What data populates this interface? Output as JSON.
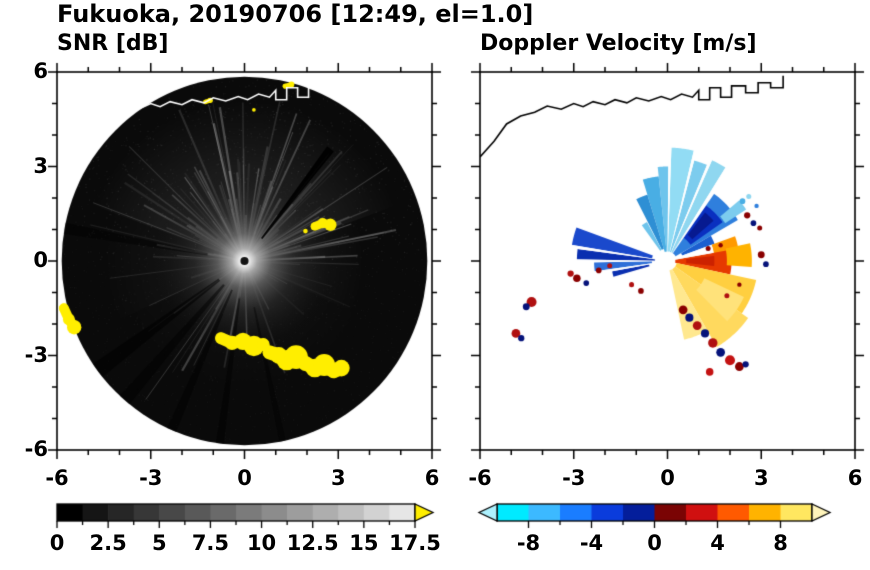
{
  "title": "Fukuoka, 20190706 [12:49, el=1.0]",
  "panels": {
    "snr": {
      "title": "SNR [dB]",
      "x_tick_labels": [
        "-6",
        "-3",
        "0",
        "3",
        "6"
      ],
      "y_tick_labels": [
        "6",
        "3",
        "0",
        "-3",
        "-6"
      ],
      "colorbar_tick_labels": [
        "0",
        "2.5",
        "5",
        "7.5",
        "10",
        "12.5",
        "15",
        "17.5"
      ]
    },
    "velocity": {
      "title": "Doppler Velocity [m/s]",
      "x_tick_labels": [
        "-6",
        "-3",
        "0",
        "3",
        "6"
      ],
      "colorbar_tick_labels": [
        "-8",
        "-4",
        "0",
        "4",
        "8"
      ]
    }
  },
  "coastline": [
    [
      -6.0,
      3.3
    ],
    [
      -5.55,
      3.8
    ],
    [
      -5.15,
      4.35
    ],
    [
      -4.7,
      4.6
    ],
    [
      -4.25,
      4.72
    ],
    [
      -3.85,
      4.92
    ],
    [
      -3.4,
      4.82
    ],
    [
      -3.0,
      5.0
    ],
    [
      -2.7,
      4.9
    ],
    [
      -2.38,
      5.06
    ],
    [
      -2.0,
      4.96
    ],
    [
      -1.68,
      5.12
    ],
    [
      -1.3,
      5.02
    ],
    [
      -1.0,
      5.18
    ],
    [
      -0.6,
      5.08
    ],
    [
      -0.2,
      5.22
    ],
    [
      0.1,
      5.12
    ],
    [
      0.45,
      5.3
    ],
    [
      0.8,
      5.2
    ],
    [
      1.0,
      5.42
    ],
    [
      1.0,
      5.12
    ],
    [
      1.35,
      5.12
    ],
    [
      1.35,
      5.5
    ],
    [
      1.7,
      5.5
    ],
    [
      1.7,
      5.2
    ],
    [
      2.05,
      5.2
    ],
    [
      2.05,
      5.56
    ],
    [
      2.5,
      5.56
    ],
    [
      2.5,
      5.34
    ],
    [
      2.9,
      5.34
    ],
    [
      2.9,
      5.66
    ],
    [
      3.3,
      5.66
    ],
    [
      3.3,
      5.5
    ],
    [
      3.7,
      5.5
    ],
    [
      3.7,
      5.88
    ]
  ],
  "chart_data": [
    {
      "type": "heatmap",
      "title": "SNR [dB]",
      "suptitle": "Fukuoka, 20190706 [12:49, el=1.0]",
      "xlim": [
        -6,
        6
      ],
      "ylim": [
        -6,
        6
      ],
      "x_ticks": [
        -6,
        -3,
        0,
        3,
        6
      ],
      "y_ticks": [
        6,
        3,
        0,
        -3,
        -6
      ],
      "colorbar": {
        "range": [
          0,
          17.5
        ],
        "ticks": [
          0,
          2.5,
          5,
          7.5,
          10,
          12.5,
          15,
          17.5
        ],
        "colors": [
          "#000000",
          "#151515",
          "#262626",
          "#373737",
          "#484848",
          "#595959",
          "#6a6a6a",
          "#7b7b7b",
          "#8c8c8c",
          "#9d9d9d",
          "#aeaeae",
          "#bfbfbf",
          "#d2d2d2",
          "#e6e6e6"
        ],
        "over_color": "#ffee00"
      },
      "coastline_color": "#ffffff",
      "render": {
        "disc": {
          "r": 5.85,
          "fill": "#0a0a0a"
        },
        "hazes": [
          {
            "a0": 20,
            "a1": 160,
            "r1": 5.2,
            "rgb": "205,205,205",
            "alpha": 0.15
          },
          {
            "a0": -25,
            "a1": 20,
            "r1": 3.9,
            "rgb": "190,190,190",
            "alpha": 0.1
          },
          {
            "a0": 160,
            "a1": 205,
            "r1": 4.6,
            "rgb": "185,185,185",
            "alpha": 0.08
          },
          {
            "a0": 205,
            "a1": 335,
            "r1": 4.2,
            "rgb": "160,160,160",
            "alpha": 0.05
          }
        ],
        "rays": {
          "seed": 11,
          "count": 170,
          "r0": 0.25,
          "lenMin": 0.6,
          "lenMax": 5.2,
          "rgb": "228,228,228",
          "alphaMin": 0.05,
          "alphaMax": 0.3,
          "upFrac": 0.62,
          "upA0": 10,
          "upA1": 170
        },
        "speckle": {
          "seed": 29,
          "count": 2600,
          "rgb": "210,210,210",
          "alphaMax": 0.13
        },
        "glow": {
          "r": 2.9,
          "stops": [
            [
              0,
              "255,255,255",
              1
            ],
            [
              0.05,
              "240,240,240",
              1
            ],
            [
              0.14,
              "170,170,170",
              0.95
            ],
            [
              0.3,
              "100,100,100",
              0.85
            ],
            [
              0.55,
              "55,55,55",
              0.5
            ],
            [
              1,
              "20,20,20",
              0
            ]
          ]
        },
        "darkWedges": [
          {
            "a0": 50.5,
            "a1": 54,
            "r0": 0.9,
            "r1": 4.5,
            "alpha": 0.92
          },
          {
            "a0": 214,
            "a1": 219,
            "r0": 1.0,
            "r1": 5.85,
            "alpha": 0.55
          },
          {
            "a0": 227,
            "a1": 231,
            "r0": 1.0,
            "r1": 5.85,
            "alpha": 0.5
          },
          {
            "a0": 245,
            "a1": 248,
            "r0": 1.0,
            "r1": 5.85,
            "alpha": 0.5
          },
          {
            "a0": 261,
            "a1": 263.5,
            "r0": 1.2,
            "r1": 5.85,
            "alpha": 0.45
          },
          {
            "a0": 281,
            "a1": 283,
            "r0": 1.5,
            "r1": 5.85,
            "alpha": 0.4
          },
          {
            "a0": 168,
            "a1": 171.5,
            "r0": 1.2,
            "r1": 5.85,
            "alpha": 0.45
          }
        ],
        "yellow": {
          "color": "#ffee00",
          "chains": [
            {
              "w": 0.2,
              "pts": [
                [
                  -5.78,
                  -1.5
                ],
                [
                  -5.62,
                  -1.85
                ],
                [
                  -5.45,
                  -2.1
                ]
              ]
            },
            {
              "w": 0.24,
              "pts": [
                [
                  -0.75,
                  -2.45
                ],
                [
                  -0.4,
                  -2.6
                ],
                [
                  -0.05,
                  -2.55
                ],
                [
                  0.3,
                  -2.7
                ],
                [
                  0.6,
                  -2.65
                ]
              ]
            },
            {
              "w": 0.28,
              "pts": [
                [
                  0.8,
                  -2.9
                ],
                [
                  1.1,
                  -3.0
                ],
                [
                  1.35,
                  -3.15
                ],
                [
                  1.65,
                  -3.05
                ],
                [
                  1.95,
                  -3.25
                ],
                [
                  2.25,
                  -3.4
                ],
                [
                  2.55,
                  -3.3
                ],
                [
                  2.85,
                  -3.5
                ],
                [
                  3.1,
                  -3.4
                ]
              ]
            },
            {
              "w": 0.17,
              "pts": [
                [
                  2.25,
                  1.1
                ],
                [
                  2.5,
                  1.2
                ],
                [
                  2.75,
                  1.15
                ]
              ]
            },
            {
              "w": 0.1,
              "pts": [
                [
                  1.95,
                  0.95
                ]
              ]
            },
            {
              "w": 0.09,
              "pts": [
                [
                  -1.25,
                  5.05
                ],
                [
                  -1.1,
                  5.1
                ]
              ]
            },
            {
              "w": 0.1,
              "pts": [
                [
                  1.3,
                  5.55
                ],
                [
                  1.5,
                  5.6
                ]
              ]
            },
            {
              "w": 0.08,
              "pts": [
                [
                  0.3,
                  4.8
                ]
              ]
            }
          ]
        },
        "centerDot": {
          "r": 0.13,
          "fill": "#141414"
        }
      }
    },
    {
      "type": "heatmap",
      "title": "Doppler Velocity [m/s]",
      "xlim": [
        -6,
        6
      ],
      "ylim": [
        -6,
        6
      ],
      "x_ticks": [
        -6,
        -3,
        0,
        3,
        6
      ],
      "y_ticks": [
        6,
        3,
        0,
        -3,
        -6
      ],
      "colorbar": {
        "range": [
          -10,
          10
        ],
        "ticks": [
          -8,
          -4,
          0,
          4,
          8
        ],
        "colors": [
          "#00eaff",
          "#3cb9ff",
          "#1a7dff",
          "#0a3cdc",
          "#041e9b",
          "#7a0404",
          "#d01010",
          "#ff5a00",
          "#ffb300",
          "#ffe760"
        ],
        "under_color": "#aef2ff",
        "over_color": "#fff4bb"
      },
      "coastline_color": "#000000",
      "render": {
        "wedges": [
          {
            "a0": 58,
            "a1": 66,
            "r0": 0.3,
            "r1": 3.5,
            "c": "#8fd7f0"
          },
          {
            "a0": 67.5,
            "a1": 75,
            "r0": 0.3,
            "r1": 3.3,
            "c": "#7cccee"
          },
          {
            "a0": 76.5,
            "a1": 88,
            "r0": 0.3,
            "r1": 3.6,
            "c": "#92dcf4"
          },
          {
            "a0": 89.5,
            "a1": 96,
            "r0": 0.3,
            "r1": 3.0,
            "c": "#6ec4ec"
          },
          {
            "a0": 96,
            "a1": 107,
            "r0": 0.3,
            "r1": 2.7,
            "c": "#49aee4"
          },
          {
            "a0": 107,
            "a1": 117,
            "r0": 0.4,
            "r1": 2.2,
            "c": "#2e8fd4"
          },
          {
            "a0": 118,
            "a1": 126,
            "r0": 0.4,
            "r1": 1.4,
            "c": "#6ec4ec"
          },
          {
            "a0": 30,
            "a1": 57,
            "r0": 0.3,
            "r1": 2.6,
            "c": "#2f7fdd"
          },
          {
            "a0": 35,
            "a1": 55,
            "r0": 0.9,
            "r1": 2.15,
            "c": "#0a30c0"
          },
          {
            "a0": 41,
            "a1": 52,
            "r0": 1.05,
            "r1": 1.95,
            "c": "#071a90"
          },
          {
            "a0": 33,
            "a1": 40,
            "r0": 2.2,
            "r1": 3.0,
            "c": "#7cccee"
          },
          {
            "a0": 20,
            "a1": 30,
            "r0": 0.5,
            "r1": 1.6,
            "c": "#1b5fd0"
          },
          {
            "a0": 8,
            "a1": 20,
            "r0": 1.5,
            "r1": 2.3,
            "c": "#ff9a00"
          },
          {
            "a0": -12,
            "a1": 10,
            "r0": 0.25,
            "r1": 2.05,
            "c": "#e63900"
          },
          {
            "a0": -6,
            "a1": 6,
            "r0": 0.6,
            "r1": 1.5,
            "c": "#cc2200"
          },
          {
            "a0": -4,
            "a1": 12,
            "r0": 1.9,
            "r1": 2.7,
            "c": "#ffb300"
          },
          {
            "a0": -35,
            "a1": -12,
            "r0": 0.3,
            "r1": 2.9,
            "c": "#ffcf40"
          },
          {
            "a0": -60,
            "a1": -35,
            "r0": 0.3,
            "r1": 3.15,
            "c": "#ffd95e"
          },
          {
            "a0": -45,
            "a1": -25,
            "r0": 1.3,
            "r1": 2.7,
            "c": "#ffe27a"
          },
          {
            "a0": -78,
            "a1": -60,
            "r0": 0.3,
            "r1": 2.55,
            "c": "#ffe88f"
          },
          {
            "a0": 160,
            "a1": 170.5,
            "r0": 0.5,
            "r1": 3.1,
            "c": "#1a49cc"
          },
          {
            "a0": 172.5,
            "a1": 179,
            "r0": 0.4,
            "r1": 2.9,
            "c": "#0a2fb0"
          },
          {
            "a0": 181,
            "a1": 188,
            "r0": 0.5,
            "r1": 2.35,
            "c": "#2e6fd8"
          },
          {
            "a0": 190.5,
            "a1": 196,
            "r0": 0.6,
            "r1": 1.8,
            "c": "#0a2fb0"
          }
        ],
        "gaps": [
          {
            "a0": 10,
            "a1": 20,
            "r0": 0,
            "r1": 1.5
          },
          {
            "a0": 66,
            "a1": 67.5,
            "r0": 0,
            "r1": 4
          },
          {
            "a0": 75,
            "a1": 76.5,
            "r0": 0,
            "r1": 4
          },
          {
            "a0": 88,
            "a1": 89.5,
            "r0": 0,
            "r1": 4
          },
          {
            "a0": 55,
            "a1": 58,
            "r0": 0,
            "r1": 4
          },
          {
            "a0": 170.5,
            "a1": 172.5,
            "r0": 0,
            "r1": 3.5
          },
          {
            "a0": 179,
            "a1": 181,
            "r0": 0,
            "r1": 3
          },
          {
            "a0": 188,
            "a1": 190.5,
            "r0": 0,
            "r1": 3
          }
        ],
        "dots": [
          [
            2.55,
            1.45,
            0.1,
            "#8a0000"
          ],
          [
            2.75,
            1.2,
            0.09,
            "#05127a"
          ],
          [
            2.95,
            1.05,
            0.08,
            "#8a0000"
          ],
          [
            3.0,
            0.2,
            0.11,
            "#8a0000"
          ],
          [
            3.15,
            -0.1,
            0.09,
            "#05127a"
          ],
          [
            1.3,
            0.4,
            0.08,
            "#8a0000"
          ],
          [
            1.7,
            0.5,
            0.07,
            "#8a0000"
          ],
          [
            2.4,
            1.9,
            0.09,
            "#49aee4"
          ],
          [
            2.6,
            2.05,
            0.08,
            "#8fd7f0"
          ],
          [
            2.85,
            1.75,
            0.07,
            "#2f7fdd"
          ],
          [
            -2.9,
            -0.55,
            0.12,
            "#8a0000"
          ],
          [
            -3.1,
            -0.4,
            0.1,
            "#b01010"
          ],
          [
            -2.6,
            -0.7,
            0.09,
            "#05127a"
          ],
          [
            -2.2,
            -0.3,
            0.09,
            "#8a0000"
          ],
          [
            -1.85,
            -0.15,
            0.08,
            "#b01010"
          ],
          [
            -4.35,
            -1.3,
            0.16,
            "#b01010"
          ],
          [
            -4.52,
            -1.45,
            0.11,
            "#05127a"
          ],
          [
            -4.85,
            -2.3,
            0.14,
            "#b01010"
          ],
          [
            -4.68,
            -2.45,
            0.1,
            "#05127a"
          ],
          [
            0.5,
            -1.55,
            0.14,
            "#8a0000"
          ],
          [
            0.7,
            -1.8,
            0.13,
            "#05127a"
          ],
          [
            0.95,
            -2.05,
            0.14,
            "#b01010"
          ],
          [
            1.2,
            -2.3,
            0.13,
            "#05127a"
          ],
          [
            1.45,
            -2.6,
            0.15,
            "#b01010"
          ],
          [
            1.7,
            -2.9,
            0.14,
            "#05127a"
          ],
          [
            2.0,
            -3.15,
            0.16,
            "#c41212"
          ],
          [
            2.3,
            -3.35,
            0.14,
            "#8a0000"
          ],
          [
            2.5,
            -3.28,
            0.1,
            "#05127a"
          ],
          [
            1.35,
            -3.52,
            0.12,
            "#c41212"
          ],
          [
            -0.85,
            -0.95,
            0.09,
            "#8a0000"
          ],
          [
            -1.15,
            -0.75,
            0.08,
            "#b01010"
          ],
          [
            1.9,
            -1.1,
            0.08,
            "#b01010"
          ],
          [
            2.3,
            -0.75,
            0.07,
            "#8a0000"
          ]
        ],
        "centerHole": {
          "r": 0.22,
          "fill": "#ffffff"
        }
      }
    }
  ]
}
